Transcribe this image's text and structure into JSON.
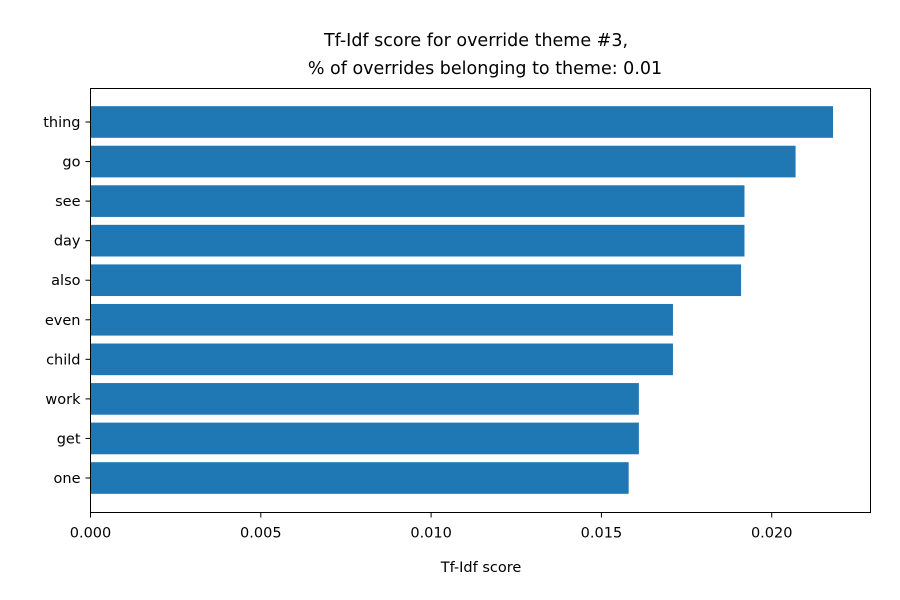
{
  "chart_data": {
    "type": "bar",
    "orientation": "horizontal",
    "title": "Tf-Idf score for override theme #3,",
    "subtitle": "% of overrides belonging to theme: 0.01",
    "xlabel": "Tf-Idf score",
    "ylabel": "",
    "xlim": [
      0,
      0.0229
    ],
    "xticks": [
      "0.000",
      "0.005",
      "0.010",
      "0.015",
      "0.020"
    ],
    "categories": [
      "thing",
      "go",
      "see",
      "day",
      "also",
      "even",
      "child",
      "work",
      "get",
      "one"
    ],
    "values": [
      0.0218,
      0.0207,
      0.0192,
      0.0192,
      0.0191,
      0.0171,
      0.0171,
      0.0161,
      0.0161,
      0.0158
    ],
    "bar_color": "#1f77b4",
    "grid": false
  }
}
